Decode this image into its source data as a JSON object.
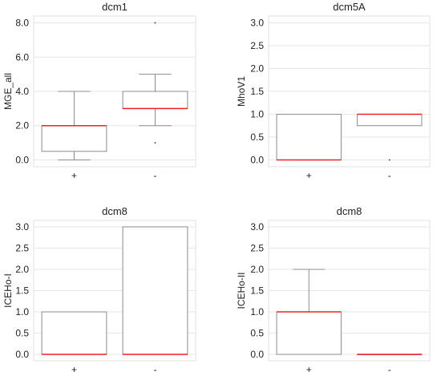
{
  "chart_data": [
    {
      "type": "boxplot",
      "title": "dcm1",
      "xlabel": "",
      "ylabel": "MGE_all",
      "categories": [
        "+",
        "-"
      ],
      "ylim": [
        -0.4,
        8.4
      ],
      "yticks": [
        "0.0",
        "2.0",
        "4.0",
        "6.0",
        "8.0"
      ],
      "ytick_values": [
        0,
        2,
        4,
        6,
        8
      ],
      "grid": true,
      "boxes": [
        {
          "category": "+",
          "whisker_low": 0,
          "q1": 0.5,
          "median": 2,
          "q3": 2,
          "whisker_high": 4,
          "outliers": []
        },
        {
          "category": "-",
          "whisker_low": 2,
          "q1": 3,
          "median": 3,
          "q3": 4,
          "whisker_high": 5,
          "outliers": [
            1,
            8
          ]
        }
      ]
    },
    {
      "type": "boxplot",
      "title": "dcm5A",
      "xlabel": "",
      "ylabel": "MhoV1",
      "categories": [
        "+",
        "-"
      ],
      "ylim": [
        -0.15,
        3.15
      ],
      "yticks": [
        "0.0",
        "0.5",
        "1.0",
        "1.5",
        "2.0",
        "2.5",
        "3.0"
      ],
      "ytick_values": [
        0,
        0.5,
        1,
        1.5,
        2,
        2.5,
        3
      ],
      "grid": true,
      "boxes": [
        {
          "category": "+",
          "whisker_low": 0,
          "q1": 0,
          "median": 0,
          "q3": 1,
          "whisker_high": 1,
          "outliers": []
        },
        {
          "category": "-",
          "whisker_low": 0.75,
          "q1": 0.75,
          "median": 1,
          "q3": 1,
          "whisker_high": 1,
          "outliers": [
            0
          ]
        }
      ]
    },
    {
      "type": "boxplot",
      "title": "dcm8",
      "xlabel": "",
      "ylabel": "ICEHo-I",
      "categories": [
        "+",
        "-"
      ],
      "ylim": [
        -0.15,
        3.15
      ],
      "yticks": [
        "0.0",
        "0.5",
        "1.0",
        "1.5",
        "2.0",
        "2.5",
        "3.0"
      ],
      "ytick_values": [
        0,
        0.5,
        1,
        1.5,
        2,
        2.5,
        3
      ],
      "grid": true,
      "boxes": [
        {
          "category": "+",
          "whisker_low": 0,
          "q1": 0,
          "median": 0,
          "q3": 1,
          "whisker_high": 1,
          "outliers": []
        },
        {
          "category": "-",
          "whisker_low": 0,
          "q1": 0,
          "median": 0,
          "q3": 3,
          "whisker_high": 3,
          "outliers": []
        }
      ]
    },
    {
      "type": "boxplot",
      "title": "dcm8",
      "xlabel": "",
      "ylabel": "ICEHo-II",
      "categories": [
        "+",
        "-"
      ],
      "ylim": [
        -0.15,
        3.15
      ],
      "yticks": [
        "0.0",
        "0.5",
        "1.0",
        "1.5",
        "2.0",
        "2.5",
        "3.0"
      ],
      "ytick_values": [
        0,
        0.5,
        1,
        1.5,
        2,
        2.5,
        3
      ],
      "grid": true,
      "boxes": [
        {
          "category": "+",
          "whisker_low": 0,
          "q1": 0,
          "median": 1,
          "q3": 1,
          "whisker_high": 2,
          "outliers": []
        },
        {
          "category": "-",
          "whisker_low": 0,
          "q1": 0,
          "median": 0,
          "q3": 0,
          "whisker_high": 0,
          "outliers": []
        }
      ]
    }
  ],
  "colors": {
    "box_edge": "#8c8c8c",
    "median": "#ee2222",
    "grid": "#e6e6e6",
    "outlier": "#555555"
  }
}
